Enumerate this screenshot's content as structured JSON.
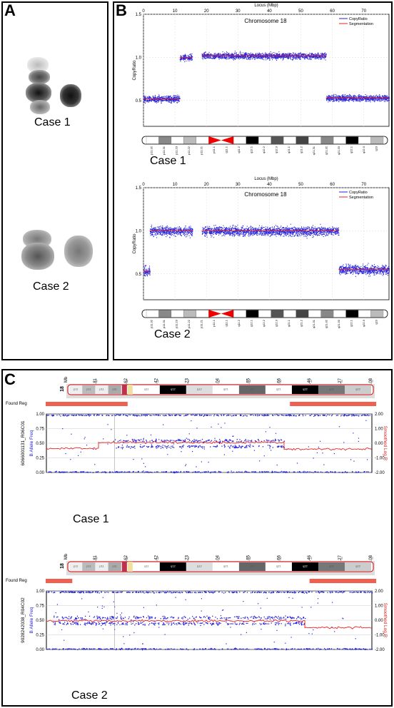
{
  "panels": {
    "a": {
      "label": "A",
      "case1": "Case 1",
      "case2": "Case 2"
    },
    "b": {
      "label": "B",
      "xlabel": "Locus (Mbp)",
      "ylabel": "CopyRatio",
      "chrom_title": "Chromosome 18",
      "legend": [
        "CopyRatio",
        "Segmentation"
      ],
      "xticks": [
        "0",
        "10",
        "20",
        "30",
        "40",
        "50",
        "60",
        "70"
      ],
      "yticks": [
        "1.5",
        "1.0",
        "0.5"
      ],
      "bands": [
        "p11.32",
        "p11.31",
        "p11.23",
        "p11.22",
        "p11.21",
        "p11.1",
        "q11.1",
        "q11.2",
        "q12.1",
        "q12.2",
        "q12.3",
        "q21.1",
        "q21.2",
        "q21.31",
        "q21.32",
        "q21.33",
        "q22.1",
        "q22.3",
        "q23"
      ],
      "case1": "Case 1",
      "case2": "Case 2"
    },
    "c": {
      "label": "C",
      "mb_label": "Mb",
      "chrom": "18",
      "mb_ticks": [
        "7.81",
        "15.62",
        "23.42",
        "31.23",
        "39.04",
        "46.85",
        "54.66",
        "62.46",
        "70.27",
        "78.08"
      ],
      "ideo_bands": [
        "p11",
        "p11",
        "p11",
        "p11",
        "q11",
        "q12",
        "q12",
        "q21",
        "q21",
        "q21",
        "q22",
        "q22",
        "q22"
      ],
      "found_reg": "Found Reg",
      "baf_label": "B Allele Freq",
      "logr_label": "Smoothed Log R",
      "baf_ticks": [
        "1.00",
        "0.75",
        "0.50",
        "0.25",
        "0.00"
      ],
      "logr_ticks": [
        "2.00",
        "1.00",
        "0.00",
        "-1.00",
        "-2.00"
      ],
      "sample1": "6066001131_R06C01",
      "sample2": "9028242038_R04C02",
      "case1": "Case 1",
      "case2": "Case 2"
    }
  },
  "chart_data": [
    {
      "type": "scatter",
      "title": "Chromosome 18",
      "xlabel": "Locus (Mbp)",
      "ylabel": "CopyRatio",
      "xlim": [
        0,
        78
      ],
      "ylim": [
        0.2,
        1.5
      ],
      "series": [
        {
          "name": "CopyRatio",
          "color": "#2222dd"
        },
        {
          "name": "Segmentation",
          "color": "#ee2222",
          "segments": [
            {
              "x": [
                0,
                11.5
              ],
              "y": 0.52
            },
            {
              "x": [
                11.5,
                15.5
              ],
              "y": 1.0
            },
            {
              "x": [
                18.5,
                58
              ],
              "y": 1.02
            },
            {
              "x": [
                58,
                78
              ],
              "y": 0.53
            }
          ]
        }
      ]
    },
    {
      "type": "scatter",
      "title": "Chromosome 18",
      "xlabel": "Locus (Mbp)",
      "ylabel": "CopyRatio",
      "xlim": [
        0,
        78
      ],
      "ylim": [
        0.2,
        1.5
      ],
      "series": [
        {
          "name": "CopyRatio",
          "color": "#2222dd"
        },
        {
          "name": "Segmentation",
          "color": "#ee2222",
          "segments": [
            {
              "x": [
                0,
                2
              ],
              "y": 0.53
            },
            {
              "x": [
                2,
                15.5
              ],
              "y": 1.0
            },
            {
              "x": [
                18.5,
                62
              ],
              "y": 1.0
            },
            {
              "x": [
                62,
                78
              ],
              "y": 0.55
            }
          ]
        }
      ]
    },
    {
      "type": "scatter",
      "xlim": [
        0,
        78.08
      ],
      "ylim": [
        0,
        1
      ],
      "ylabel": "B Allele Freq",
      "y2label": "Smoothed Log R",
      "y2lim": [
        -2,
        2
      ],
      "found_regions": [
        [
          0,
          15.62
        ],
        [
          57,
          78.08
        ]
      ],
      "series": [
        {
          "name": "B Allele Freq",
          "color": "#2222dd",
          "het_bands_x": [
            [
              0,
              15.62
            ],
            [
              57,
              78.08
            ]
          ],
          "split_bands_x": [
            [
              16,
              57
            ]
          ]
        },
        {
          "name": "Smoothed Log R",
          "color": "#ee2222",
          "segments": [
            {
              "x": [
                0,
                12.5
              ],
              "y": -0.35
            },
            {
              "x": [
                12.5,
                57
              ],
              "y": 0.05
            },
            {
              "x": [
                57,
                78.08
              ],
              "y": -0.4
            }
          ]
        }
      ]
    },
    {
      "type": "scatter",
      "xlim": [
        0,
        78.08
      ],
      "ylim": [
        0,
        1
      ],
      "ylabel": "B Allele Freq",
      "y2label": "Smoothed Log R",
      "y2lim": [
        -2,
        2
      ],
      "found_regions": [
        [
          0,
          1.5
        ],
        [
          62,
          78.08
        ]
      ],
      "series": [
        {
          "name": "B Allele Freq",
          "color": "#2222dd",
          "het_bands_x": [
            [
              0,
              1.5
            ],
            [
              62,
              78.08
            ]
          ],
          "split_bands_x": [
            [
              1.5,
              62
            ]
          ]
        },
        {
          "name": "Smoothed Log R",
          "color": "#ee2222",
          "segments": [
            {
              "x": [
                0,
                62
              ],
              "y": -0.05
            },
            {
              "x": [
                62,
                78.08
              ],
              "y": -0.5
            }
          ]
        }
      ]
    }
  ]
}
